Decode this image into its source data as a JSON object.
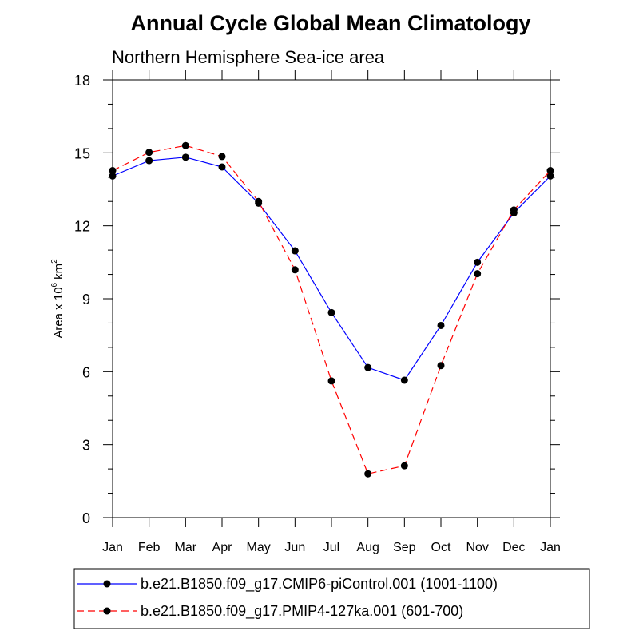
{
  "chart_data": {
    "type": "line",
    "title": "Annual Cycle Global Mean Climatology",
    "subtitle": "Northern Hemisphere Sea-ice area",
    "xlabel": "",
    "ylabel": "Area x 10",
    "ylabel_sup": "6",
    "ylabel_unit": "km",
    "ylabel_unit_sup": "2",
    "categories": [
      "Jan",
      "Feb",
      "Mar",
      "Apr",
      "May",
      "Jun",
      "Jul",
      "Aug",
      "Sep",
      "Oct",
      "Nov",
      "Dec",
      "Jan"
    ],
    "ylim": [
      0,
      18
    ],
    "yticks": [
      0,
      3,
      6,
      9,
      12,
      15,
      18
    ],
    "grid": false,
    "legend_position": "bottom",
    "series": [
      {
        "name": "b.e21.B1850.f09_g17.CMIP6-piControl.001 (1001-1100)",
        "color": "#0000ff",
        "dash": "solid",
        "marker": "filled-circle",
        "values": [
          14.05,
          14.68,
          14.82,
          14.42,
          12.93,
          10.97,
          8.43,
          6.17,
          5.65,
          7.9,
          10.5,
          12.53,
          14.05
        ]
      },
      {
        "name": "b.e21.B1850.f09_g17.PMIP4-127ka.001 (601-700)",
        "color": "#ff0000",
        "dash": "dashed",
        "marker": "filled-circle",
        "values": [
          14.27,
          15.02,
          15.3,
          14.85,
          13.0,
          10.19,
          5.62,
          1.8,
          2.13,
          6.25,
          10.03,
          12.65,
          14.27
        ]
      }
    ]
  }
}
